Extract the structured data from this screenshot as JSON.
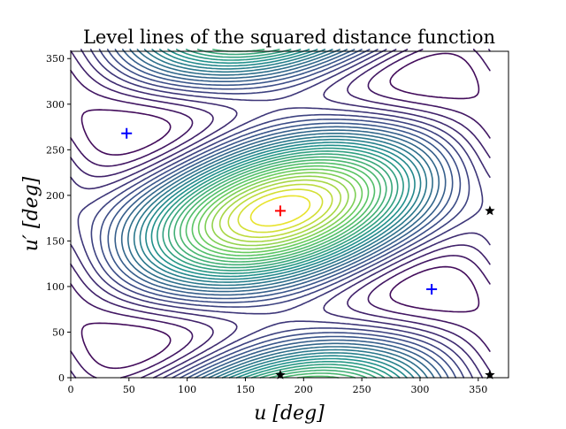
{
  "chart_data": {
    "type": "contour",
    "title": "Level lines of the squared distance function",
    "xlabel": "u [deg]",
    "ylabel": "u′ [deg]",
    "xlim": [
      0,
      376
    ],
    "ylim": [
      0,
      358
    ],
    "xticks": [
      0,
      50,
      100,
      150,
      200,
      250,
      300,
      350
    ],
    "yticks": [
      0,
      50,
      100,
      150,
      200,
      250,
      300,
      350
    ],
    "grid": false,
    "colormap": "viridis",
    "levels": 30,
    "markers": [
      {
        "kind": "minimum",
        "symbol": "+",
        "color": "#0000ff",
        "x": 48,
        "y": 268
      },
      {
        "kind": "minimum",
        "symbol": "+",
        "color": "#0000ff",
        "x": 310,
        "y": 97
      },
      {
        "kind": "maximum",
        "symbol": "+",
        "color": "#ff0000",
        "x": 180,
        "y": 183
      },
      {
        "kind": "critical",
        "symbol": "star",
        "color": "#000000",
        "x": 180,
        "y": 3
      },
      {
        "kind": "critical",
        "symbol": "star",
        "color": "#000000",
        "x": 360,
        "y": 3
      },
      {
        "kind": "critical",
        "symbol": "star",
        "color": "#000000",
        "x": 360,
        "y": 183
      }
    ]
  }
}
